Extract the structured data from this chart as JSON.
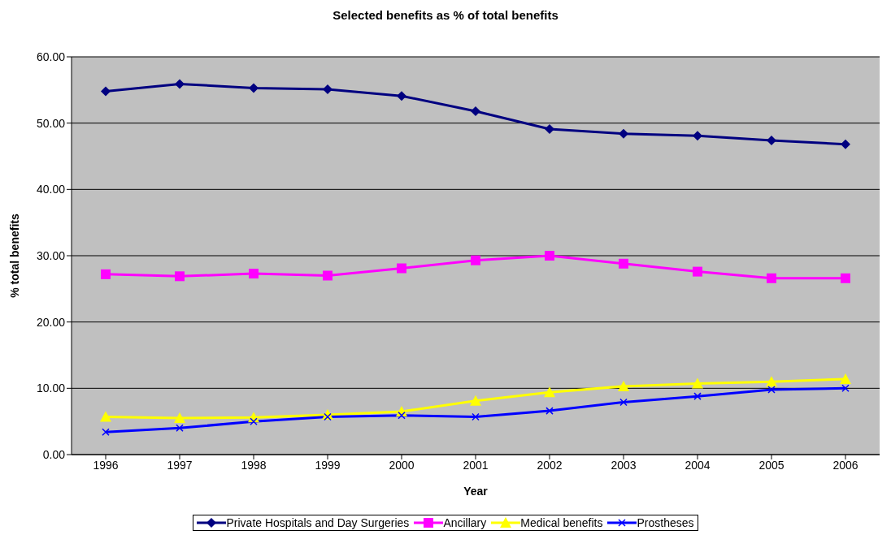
{
  "chart_data": {
    "type": "line",
    "title": "Selected benefits as % of total benefits",
    "xlabel": "Year",
    "ylabel": "% total benefits",
    "categories": [
      "1996",
      "1997",
      "1998",
      "1999",
      "2000",
      "2001",
      "2002",
      "2003",
      "2004",
      "2005",
      "2006"
    ],
    "series": [
      {
        "name": "Private Hospitals and Day Surgeries",
        "color": "#000080",
        "marker": "diamond",
        "values": [
          54.8,
          55.9,
          55.3,
          55.1,
          54.1,
          51.8,
          49.1,
          48.4,
          48.1,
          47.4,
          46.8
        ]
      },
      {
        "name": "Ancillary",
        "color": "#ff00ff",
        "marker": "square",
        "values": [
          27.2,
          26.9,
          27.3,
          27.0,
          28.1,
          29.3,
          30.0,
          28.8,
          27.6,
          26.6,
          26.6
        ]
      },
      {
        "name": "Medical benefits",
        "color": "#ffff00",
        "marker": "triangle",
        "values": [
          5.7,
          5.5,
          5.6,
          6.0,
          6.5,
          8.1,
          9.4,
          10.3,
          10.7,
          11.0,
          11.4
        ]
      },
      {
        "name": "Prostheses",
        "color": "#0000ff",
        "marker": "cross",
        "values": [
          3.4,
          4.0,
          5.0,
          5.7,
          5.9,
          5.7,
          6.6,
          7.9,
          8.8,
          9.8,
          10.0
        ]
      }
    ],
    "ylim": [
      0,
      60
    ],
    "yticks": [
      {
        "value": 0,
        "label": "0.00"
      },
      {
        "value": 10,
        "label": "10.00"
      },
      {
        "value": 20,
        "label": "20.00"
      },
      {
        "value": 30,
        "label": "30.00"
      },
      {
        "value": 40,
        "label": "40.00"
      },
      {
        "value": 50,
        "label": "50.00"
      },
      {
        "value": 60,
        "label": "60.00"
      }
    ],
    "grid": "y",
    "legend": "bottom",
    "line_style": "solid"
  }
}
